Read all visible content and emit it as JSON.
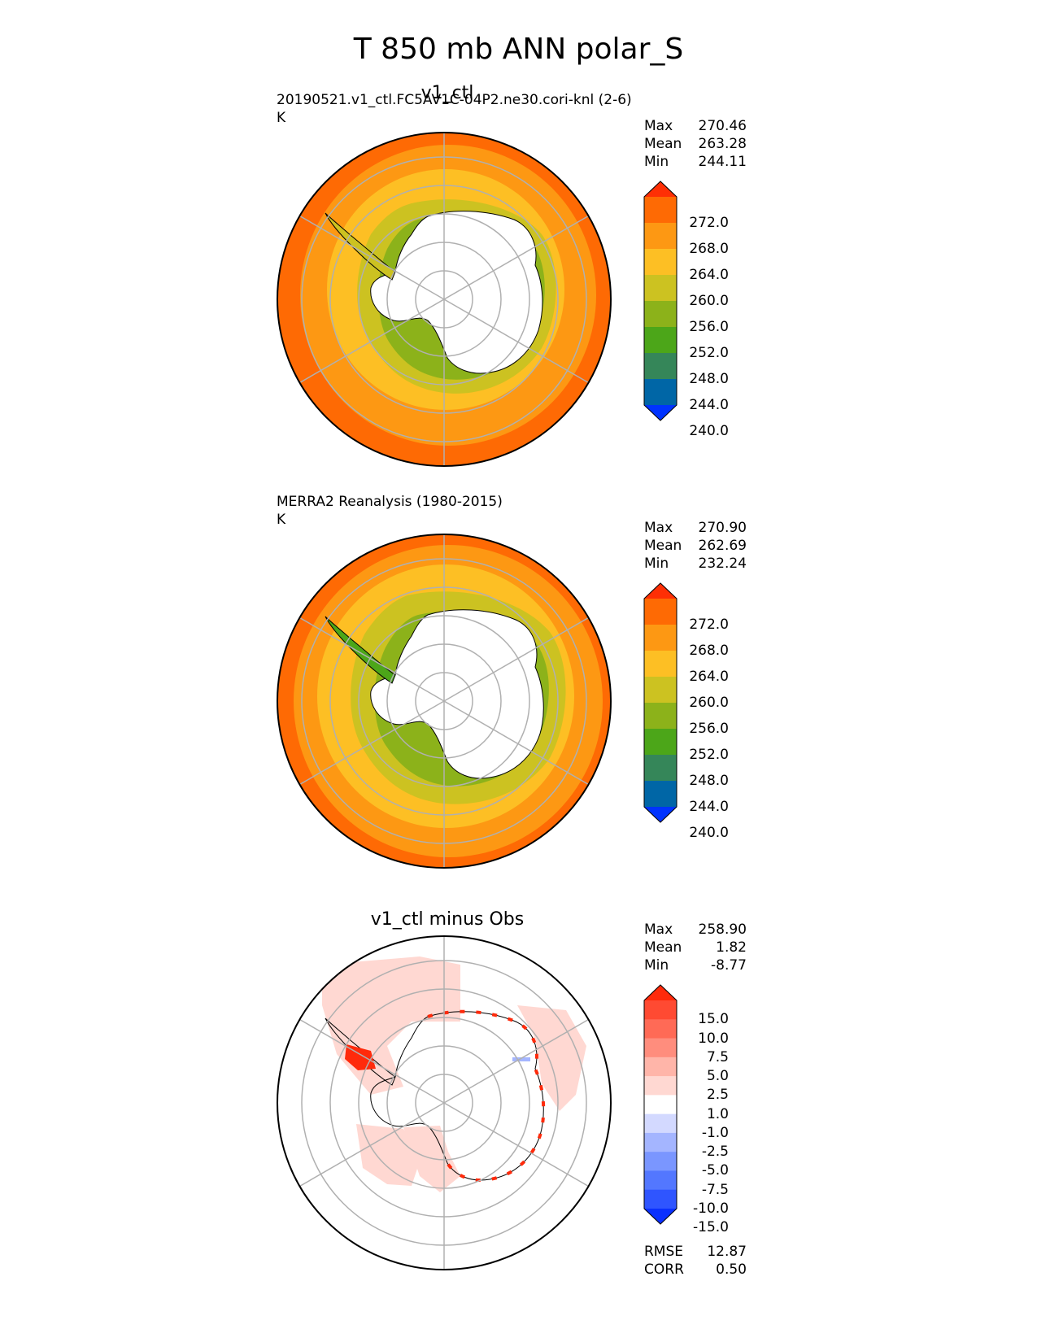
{
  "figure": {
    "title": "T 850 mb ANN polar_S"
  },
  "colors": {
    "warm_bins": [
      "#0033ff",
      "#0066a6",
      "#358659",
      "#4ca619",
      "#8cb21a",
      "#ccc221",
      "#fdbf24",
      "#fd9813",
      "#fe6a04",
      "#fe2f05"
    ],
    "diff_bins": [
      "#0a30ff",
      "#2f55ff",
      "#5377ff",
      "#7a96ff",
      "#a4b5ff",
      "#d3d9ff",
      "#ffffff",
      "#ffd8d2",
      "#ffb5a9",
      "#ff8d7d",
      "#ff6a56",
      "#ff4a32",
      "#ff2a0b"
    ],
    "land_white": "#ffffff",
    "grid": "#b0b0b0"
  },
  "panels": [
    {
      "id": "test",
      "title": "v1_ctl",
      "subtitle": "20190521.v1_ctl.FC5AV1C-04P2.ne30.cori-knl (2-6)",
      "units": "K",
      "stats": [
        {
          "label": "Max",
          "value": "270.46"
        },
        {
          "label": "Mean",
          "value": "263.28"
        },
        {
          "label": "Min",
          "value": "244.11"
        }
      ],
      "colorbar_ticks": [
        "272.0",
        "268.0",
        "264.0",
        "260.0",
        "256.0",
        "252.0",
        "248.0",
        "244.0",
        "240.0"
      ]
    },
    {
      "id": "reference",
      "title": "",
      "subtitle": "MERRA2 Reanalysis (1980-2015)",
      "units": "K",
      "stats": [
        {
          "label": "Max",
          "value": "270.90"
        },
        {
          "label": "Mean",
          "value": "262.69"
        },
        {
          "label": "Min",
          "value": "232.24"
        }
      ],
      "colorbar_ticks": [
        "272.0",
        "268.0",
        "264.0",
        "260.0",
        "256.0",
        "252.0",
        "248.0",
        "244.0",
        "240.0"
      ]
    },
    {
      "id": "diff",
      "title": "v1_ctl minus Obs",
      "subtitle": "",
      "units": "",
      "stats": [
        {
          "label": "Max",
          "value": "258.90"
        },
        {
          "label": "Mean",
          "value": "1.82"
        },
        {
          "label": "Min",
          "value": "-8.77"
        }
      ],
      "colorbar_ticks": [
        "15.0",
        "10.0",
        "7.5",
        "5.0",
        "2.5",
        "1.0",
        "-1.0",
        "-2.5",
        "-5.0",
        "-7.5",
        "-10.0",
        "-15.0"
      ],
      "metrics": [
        {
          "label": "RMSE",
          "value": "12.87"
        },
        {
          "label": "CORR",
          "value": "0.50"
        }
      ]
    }
  ],
  "chart_data": [
    {
      "type": "heatmap",
      "projection": "south polar stereographic",
      "title": "v1_ctl",
      "subtitle": "20190521.v1_ctl.FC5AV1C-04P2.ne30.cori-knl (2-6)",
      "units": "K",
      "colorbar_levels": [
        240,
        244,
        248,
        252,
        256,
        260,
        264,
        268,
        272
      ],
      "colorbar_extend": "both",
      "max": 270.46,
      "mean": 263.28,
      "min": 244.11,
      "grid": true
    },
    {
      "type": "heatmap",
      "projection": "south polar stereographic",
      "subtitle": "MERRA2 Reanalysis (1980-2015)",
      "units": "K",
      "colorbar_levels": [
        240,
        244,
        248,
        252,
        256,
        260,
        264,
        268,
        272
      ],
      "colorbar_extend": "both",
      "max": 270.9,
      "mean": 262.69,
      "min": 232.24,
      "grid": true
    },
    {
      "type": "heatmap",
      "projection": "south polar stereographic",
      "title": "v1_ctl minus Obs",
      "colorbar_levels": [
        -15,
        -10,
        -7.5,
        -5,
        -2.5,
        -1,
        1,
        2.5,
        5,
        7.5,
        10,
        15
      ],
      "colorbar_extend": "both",
      "max": 258.9,
      "mean": 1.82,
      "min": -8.77,
      "rmse": 12.87,
      "corr": 0.5,
      "grid": true
    }
  ]
}
